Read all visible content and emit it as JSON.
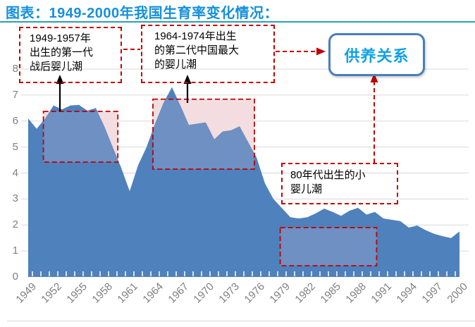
{
  "title": "图表：1949-2000年我国生育率变化情况：",
  "annotations": {
    "box1": "1949-1957年\n出生的第一代\n战后婴儿潮",
    "box2": "1964-1974年出生\n的第二代中国最大\n的婴儿潮",
    "box3": "80年代出生的小\n婴儿潮",
    "relation": "供养关系"
  },
  "colors": {
    "title_blue": "#1590db",
    "title_rule": "#2c9fb5",
    "area_blue": "#4f81bd",
    "highlight_pink": "#f9e3e2",
    "dashed_red": "#c00000",
    "relation_border": "#4a7ebc",
    "relation_text": "#0fa2e6",
    "axis_gray": "#7f7f7f",
    "gridline_gray": "#d9d9d9"
  },
  "chart_data": {
    "type": "area",
    "title": "1949-2000年我国生育率变化情况",
    "xlabel": "",
    "ylabel": "",
    "ylim": [
      0,
      8
    ],
    "yticks": [
      0,
      1,
      2,
      3,
      4,
      5,
      6,
      7,
      8
    ],
    "grid": true,
    "x": [
      1949,
      1950,
      1951,
      1952,
      1953,
      1954,
      1955,
      1956,
      1957,
      1958,
      1959,
      1960,
      1961,
      1962,
      1963,
      1964,
      1965,
      1966,
      1967,
      1968,
      1969,
      1970,
      1971,
      1972,
      1973,
      1974,
      1975,
      1976,
      1977,
      1978,
      1979,
      1980,
      1981,
      1982,
      1983,
      1984,
      1985,
      1986,
      1987,
      1988,
      1989,
      1990,
      1991,
      1992,
      1993,
      1994,
      1995,
      1996,
      1997,
      1998,
      1999,
      2000
    ],
    "series": [
      {
        "name": "生育率",
        "values": [
          6.1,
          5.7,
          6.1,
          6.6,
          6.45,
          6.6,
          6.62,
          6.4,
          6.5,
          5.8,
          5.0,
          4.2,
          3.3,
          4.3,
          5.0,
          5.9,
          6.7,
          7.3,
          6.6,
          5.85,
          5.9,
          5.95,
          5.3,
          5.6,
          5.65,
          5.8,
          5.2,
          4.6,
          3.6,
          3.0,
          2.65,
          2.3,
          2.25,
          2.3,
          2.45,
          2.63,
          2.5,
          2.35,
          2.55,
          2.66,
          2.4,
          2.5,
          2.25,
          2.2,
          2.15,
          1.9,
          1.98,
          1.8,
          1.66,
          1.57,
          1.5,
          1.75
        ]
      }
    ],
    "x_tick_labels": [
      "1949",
      "1952",
      "1955",
      "1958",
      "1961",
      "1964",
      "1967",
      "1970",
      "1973",
      "1976",
      "1979",
      "1982",
      "1985",
      "1988",
      "1991",
      "1994",
      "1997",
      "2000"
    ],
    "highlight_regions": [
      {
        "label": "第一代战后婴儿潮",
        "year_range": [
          1950.8,
          1959.6
        ],
        "value_range": [
          4.42,
          6.37
        ]
      },
      {
        "label": "第二代中国最大的婴儿潮",
        "year_range": [
          1963.75,
          1975.75
        ],
        "value_range": [
          4.15,
          6.84
        ]
      },
      {
        "label": "80年代出生的小婴儿潮",
        "year_range": [
          1978.8,
          1990.2
        ],
        "value_range": [
          0.43,
          1.9
        ]
      }
    ]
  }
}
